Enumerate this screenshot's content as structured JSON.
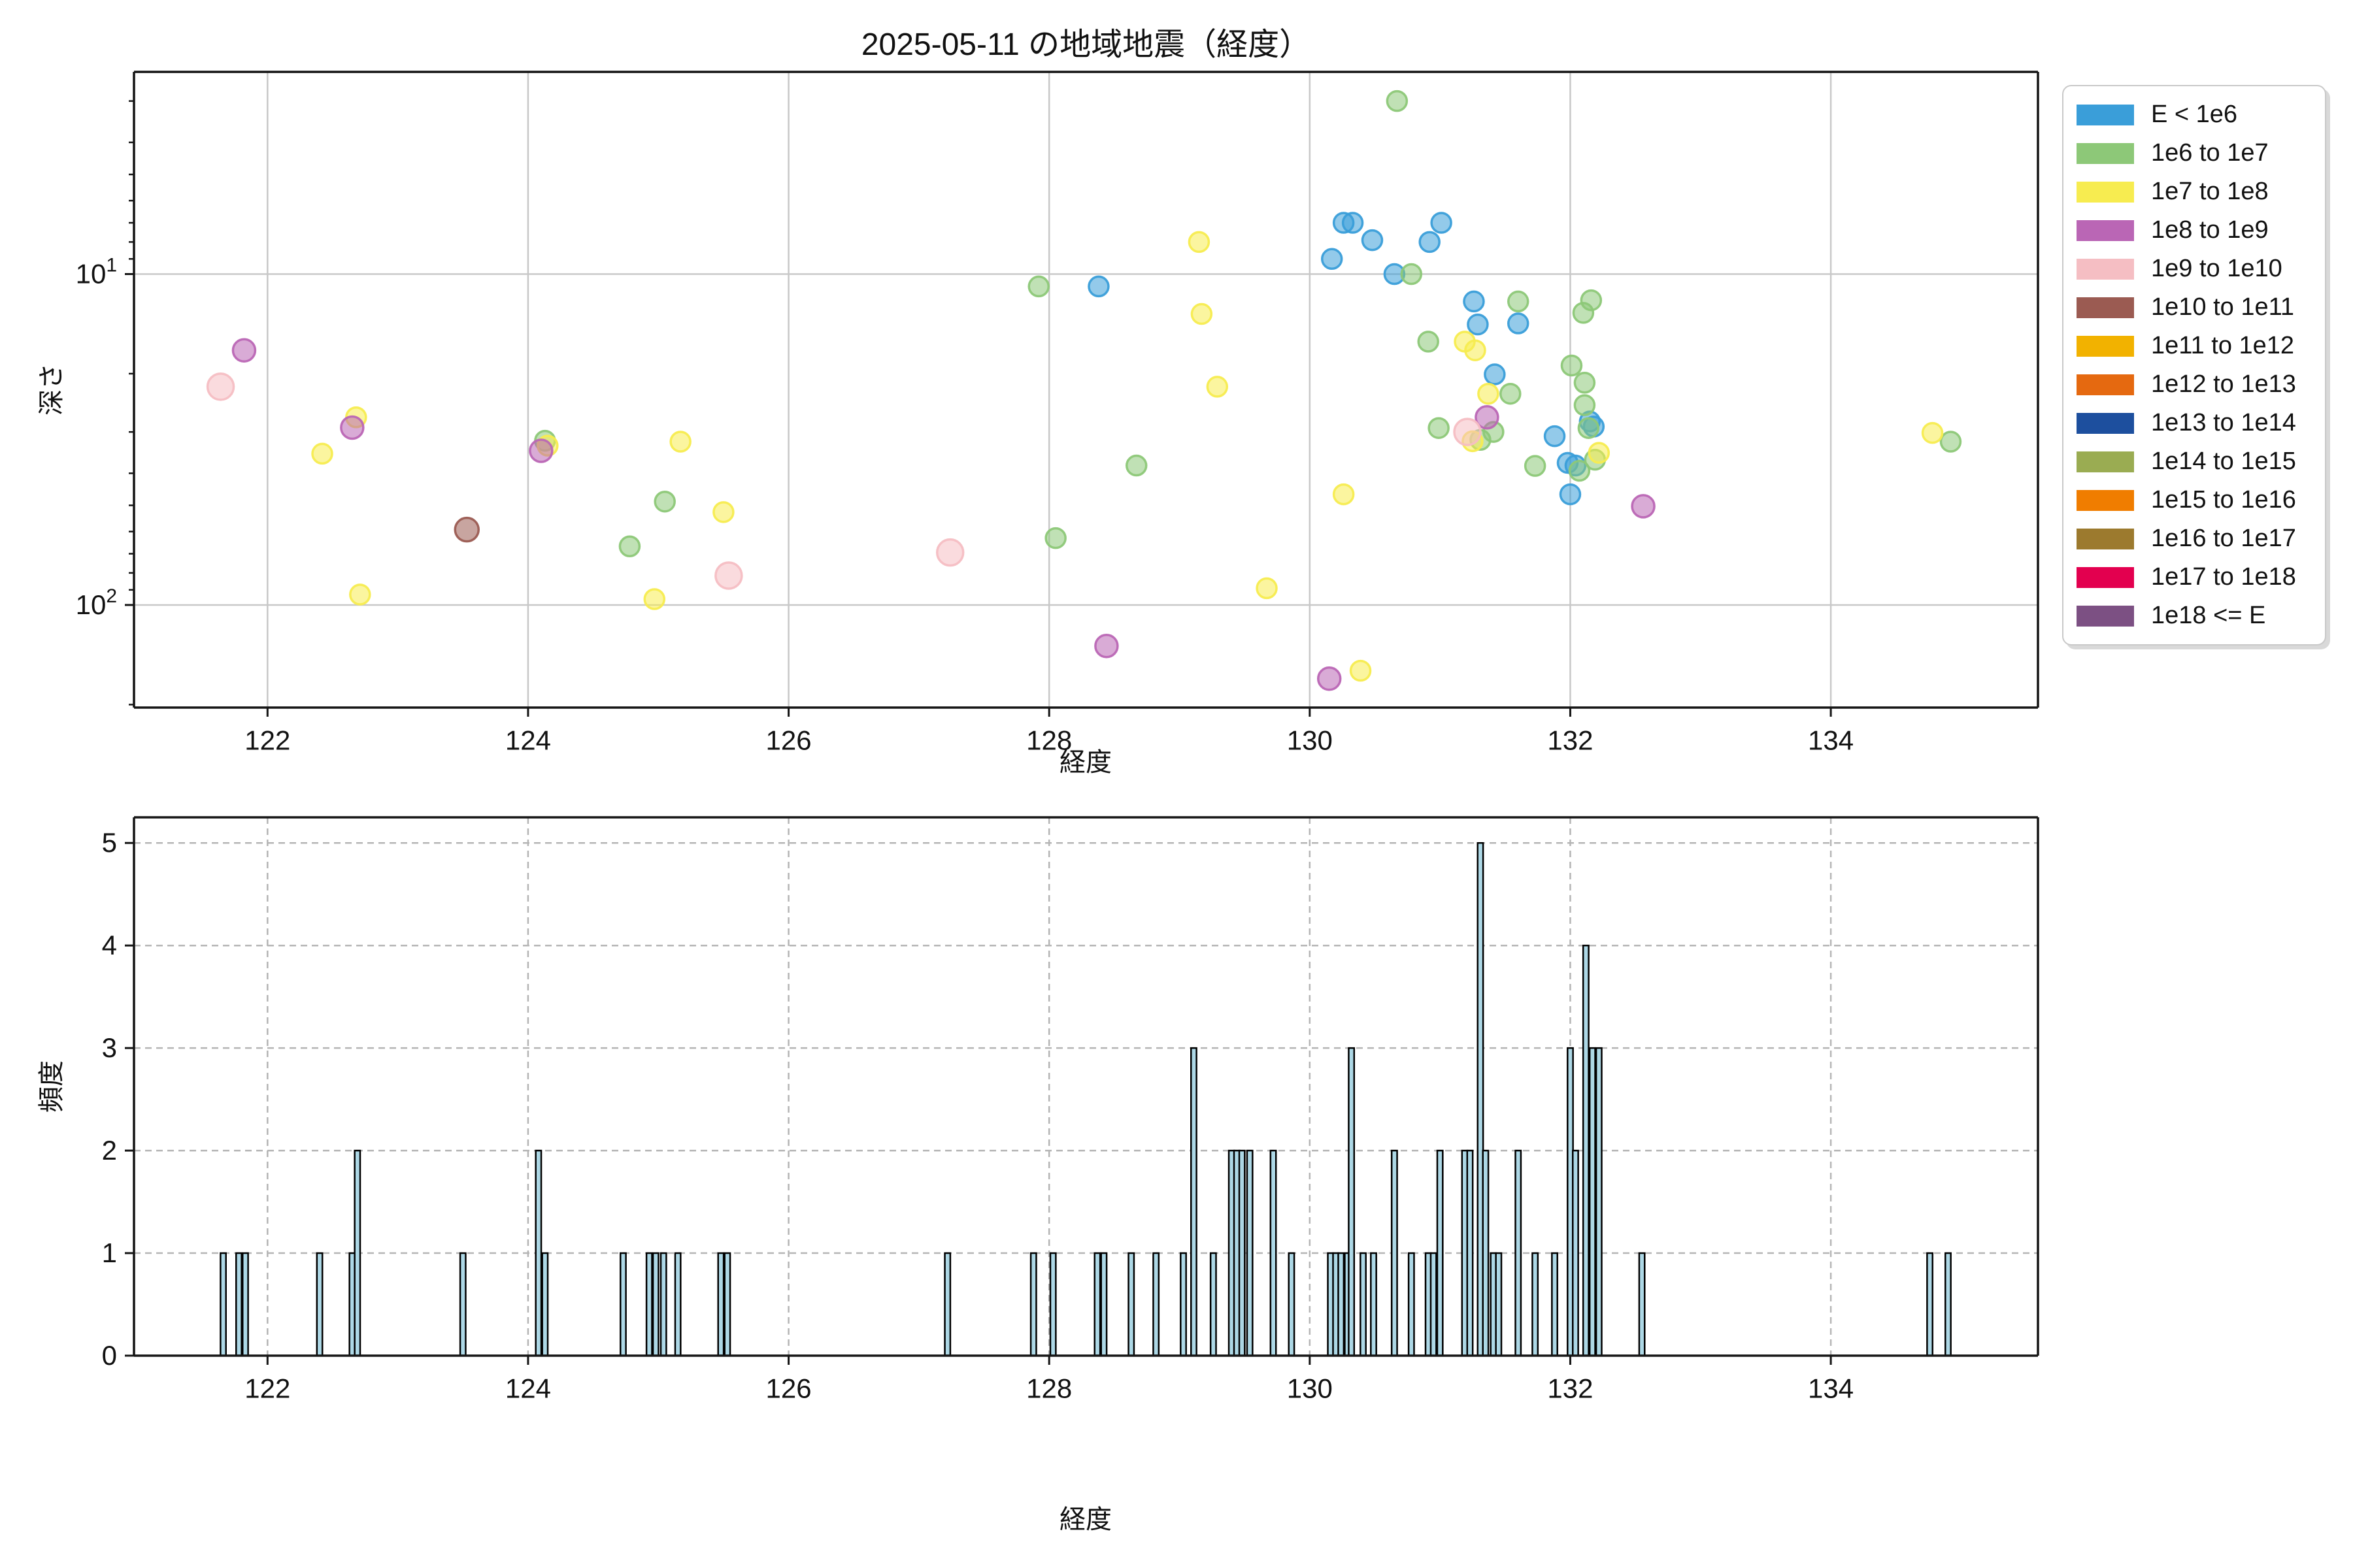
{
  "title": "2025-05-11 の地域地震（経度）",
  "legend": {
    "items": [
      {
        "label": "E < 1e6",
        "color": "#3A9ED9",
        "marker_radius": 15
      },
      {
        "label": "1e6 to 1e7",
        "color": "#8DC878",
        "marker_radius": 15
      },
      {
        "label": "1e7 to 1e8",
        "color": "#F7EC50",
        "marker_radius": 15
      },
      {
        "label": "1e8 to 1e9",
        "color": "#BA66B5",
        "marker_radius": 17
      },
      {
        "label": "1e9 to 1e10",
        "color": "#F5BEC3",
        "marker_radius": 20
      },
      {
        "label": "1e10 to 1e11",
        "color": "#9B5B52",
        "marker_radius": 18
      },
      {
        "label": "1e11 to 1e12",
        "color": "#F2B200",
        "marker_radius": 15
      },
      {
        "label": "1e12 to 1e13",
        "color": "#E56910",
        "marker_radius": 15
      },
      {
        "label": "1e13 to 1e14",
        "color": "#1D4F9E",
        "marker_radius": 15
      },
      {
        "label": "1e14 to 1e15",
        "color": "#9AAC52",
        "marker_radius": 15
      },
      {
        "label": "1e15 to 1e16",
        "color": "#F07D00",
        "marker_radius": 15
      },
      {
        "label": "1e16 to 1e17",
        "color": "#9C7A2E",
        "marker_radius": 15
      },
      {
        "label": "1e17 to 1e18",
        "color": "#E3004F",
        "marker_radius": 15
      },
      {
        "label": "1e18 <= E",
        "color": "#7C5083",
        "marker_radius": 15
      }
    ]
  },
  "chart_data": [
    {
      "type": "scatter",
      "title": "2025-05-11 の地域地震（経度）",
      "xlabel": "経度",
      "ylabel": "深さ",
      "x_range": [
        120.975,
        135.59
      ],
      "y_axis": "log depth, shallow at top, range 2.45 to 204 km",
      "y_log_range": [
        0.389,
        2.31
      ],
      "x_ticks": [
        122,
        124,
        126,
        128,
        130,
        132,
        134
      ],
      "y_ticks_major": [
        {
          "base": "10",
          "exp": "1",
          "value": 10
        },
        {
          "base": "10",
          "exp": "2",
          "value": 100
        }
      ],
      "y_ticks_minor": [
        3,
        4,
        5,
        6,
        7,
        8,
        9,
        20,
        30,
        40,
        50,
        60,
        70,
        80,
        90,
        200
      ],
      "grid": "solid",
      "legend_position": "outside-right",
      "point_format": [
        "longitude",
        "depth_km",
        "category_index"
      ],
      "points": [
        [
          128.38,
          10.9,
          0
        ],
        [
          130.17,
          9.0,
          0
        ],
        [
          130.26,
          7.0,
          0
        ],
        [
          130.33,
          7.0,
          0
        ],
        [
          130.48,
          7.9,
          0
        ],
        [
          130.65,
          10.0,
          0
        ],
        [
          130.92,
          8.0,
          0
        ],
        [
          131.01,
          7.0,
          0
        ],
        [
          131.26,
          12.1,
          0
        ],
        [
          131.29,
          14.2,
          0
        ],
        [
          131.42,
          20.1,
          0
        ],
        [
          131.6,
          14.1,
          0
        ],
        [
          131.88,
          30.9,
          0
        ],
        [
          131.98,
          37.2,
          0
        ],
        [
          132.04,
          37.9,
          0
        ],
        [
          132.0,
          46.3,
          0
        ],
        [
          132.15,
          27.9,
          0
        ],
        [
          132.18,
          28.9,
          0
        ],
        [
          124.13,
          31.9,
          1
        ],
        [
          124.78,
          66.5,
          1
        ],
        [
          125.05,
          48.7,
          1
        ],
        [
          127.92,
          10.9,
          1
        ],
        [
          128.05,
          62.8,
          1
        ],
        [
          128.67,
          37.9,
          1
        ],
        [
          130.67,
          3.0,
          1
        ],
        [
          130.78,
          10.0,
          1
        ],
        [
          130.91,
          16.0,
          1
        ],
        [
          130.99,
          29.2,
          1
        ],
        [
          131.31,
          31.7,
          1
        ],
        [
          131.41,
          30.0,
          1
        ],
        [
          131.54,
          23.0,
          1
        ],
        [
          131.6,
          12.1,
          1
        ],
        [
          131.73,
          38.0,
          1
        ],
        [
          132.01,
          18.9,
          1
        ],
        [
          132.07,
          39.3,
          1
        ],
        [
          132.1,
          13.1,
          1
        ],
        [
          132.11,
          21.3,
          1
        ],
        [
          132.11,
          24.9,
          1
        ],
        [
          132.14,
          29.2,
          1
        ],
        [
          132.16,
          12.0,
          1
        ],
        [
          132.19,
          36.4,
          1
        ],
        [
          134.92,
          32.1,
          1
        ],
        [
          122.42,
          34.9,
          2
        ],
        [
          122.68,
          27.1,
          2
        ],
        [
          122.71,
          93.0,
          2
        ],
        [
          124.15,
          33.0,
          2
        ],
        [
          124.97,
          96.0,
          2
        ],
        [
          125.17,
          32.1,
          2
        ],
        [
          125.5,
          52.4,
          2
        ],
        [
          129.15,
          8.0,
          2
        ],
        [
          129.17,
          13.2,
          2
        ],
        [
          129.29,
          21.9,
          2
        ],
        [
          129.67,
          89.0,
          2
        ],
        [
          130.26,
          46.3,
          2
        ],
        [
          130.39,
          158.0,
          2
        ],
        [
          131.19,
          16.0,
          2
        ],
        [
          131.25,
          32.0,
          2
        ],
        [
          131.27,
          17.0,
          2
        ],
        [
          131.37,
          23.0,
          2
        ],
        [
          132.22,
          34.7,
          2
        ],
        [
          134.78,
          30.2,
          2
        ],
        [
          121.82,
          17.0,
          3
        ],
        [
          122.65,
          29.1,
          3
        ],
        [
          124.1,
          34.2,
          3
        ],
        [
          128.44,
          133.0,
          3
        ],
        [
          130.15,
          167.0,
          3
        ],
        [
          131.36,
          27.1,
          3
        ],
        [
          132.56,
          50.3,
          3
        ],
        [
          121.64,
          21.9,
          4
        ],
        [
          125.54,
          81.5,
          4
        ],
        [
          127.24,
          69.4,
          4
        ],
        [
          131.21,
          30.0,
          4
        ],
        [
          123.53,
          59.2,
          5
        ]
      ]
    },
    {
      "type": "bar",
      "xlabel": "経度",
      "ylabel": "頻度",
      "x_range": [
        120.975,
        135.59
      ],
      "ylim": [
        0,
        5.25
      ],
      "y_ticks": [
        0,
        1,
        2,
        3,
        4,
        5
      ],
      "x_ticks": [
        122,
        124,
        126,
        128,
        130,
        132,
        134
      ],
      "grid": "dashed",
      "bar_color": "#ADD8E6",
      "bar_edge_color": "#000000",
      "bar_width_deg": 0.042,
      "bar_format": [
        "longitude",
        "count"
      ],
      "bars": [
        [
          121.66,
          1
        ],
        [
          121.78,
          1
        ],
        [
          121.83,
          1
        ],
        [
          122.4,
          1
        ],
        [
          122.65,
          1
        ],
        [
          122.69,
          2
        ],
        [
          123.5,
          1
        ],
        [
          124.08,
          2
        ],
        [
          124.13,
          1
        ],
        [
          124.73,
          1
        ],
        [
          124.93,
          1
        ],
        [
          124.98,
          1
        ],
        [
          125.04,
          1
        ],
        [
          125.15,
          1
        ],
        [
          125.48,
          1
        ],
        [
          125.53,
          1
        ],
        [
          127.22,
          1
        ],
        [
          127.88,
          1
        ],
        [
          128.03,
          1
        ],
        [
          128.37,
          1
        ],
        [
          128.42,
          1
        ],
        [
          128.63,
          1
        ],
        [
          128.82,
          1
        ],
        [
          129.03,
          1
        ],
        [
          129.11,
          3
        ],
        [
          129.26,
          1
        ],
        [
          129.4,
          2
        ],
        [
          129.44,
          2
        ],
        [
          129.48,
          2
        ],
        [
          129.54,
          2
        ],
        [
          129.72,
          2
        ],
        [
          129.86,
          1
        ],
        [
          130.16,
          1
        ],
        [
          130.2,
          1
        ],
        [
          130.24,
          1
        ],
        [
          130.29,
          1
        ],
        [
          130.32,
          3
        ],
        [
          130.41,
          1
        ],
        [
          130.49,
          1
        ],
        [
          130.65,
          2
        ],
        [
          130.78,
          1
        ],
        [
          130.91,
          1
        ],
        [
          130.95,
          1
        ],
        [
          131.0,
          2
        ],
        [
          131.19,
          2
        ],
        [
          131.23,
          2
        ],
        [
          131.31,
          5
        ],
        [
          131.35,
          2
        ],
        [
          131.41,
          1
        ],
        [
          131.45,
          1
        ],
        [
          131.6,
          2
        ],
        [
          131.73,
          1
        ],
        [
          131.88,
          1
        ],
        [
          132.0,
          3
        ],
        [
          132.04,
          2
        ],
        [
          132.12,
          4
        ],
        [
          132.17,
          3
        ],
        [
          132.22,
          3
        ],
        [
          132.55,
          1
        ],
        [
          134.76,
          1
        ],
        [
          134.9,
          1
        ]
      ]
    }
  ],
  "labels": {
    "scatter_xlabel": "経度",
    "scatter_ylabel": "深さ",
    "hist_xlabel": "経度",
    "hist_ylabel": "頻度"
  }
}
